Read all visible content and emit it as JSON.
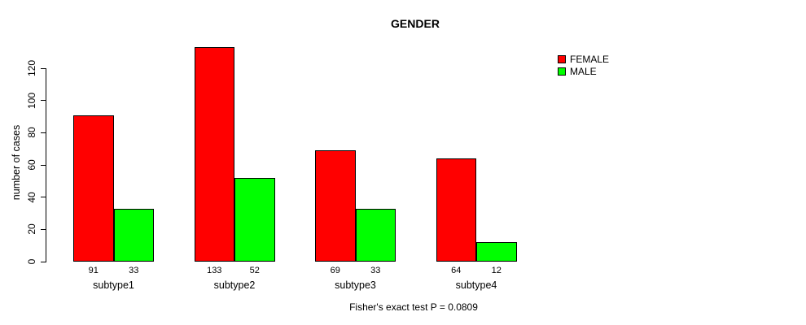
{
  "chart_data": {
    "type": "bar",
    "title": "GENDER",
    "ylabel": "number of cases",
    "xlabel": "",
    "categories": [
      "subtype1",
      "subtype2",
      "subtype3",
      "subtype4"
    ],
    "series": [
      {
        "name": "FEMALE",
        "color": "#FF0000",
        "values": [
          91,
          133,
          69,
          64
        ]
      },
      {
        "name": "MALE",
        "color": "#00FF00",
        "values": [
          33,
          52,
          33,
          12
        ]
      }
    ],
    "bar_value_labels": [
      [
        91,
        33
      ],
      [
        133,
        52
      ],
      [
        69,
        33
      ],
      [
        64,
        12
      ]
    ],
    "yticks": [
      0,
      20,
      40,
      60,
      80,
      100,
      120
    ],
    "ylim": [
      0,
      120
    ],
    "grid": false,
    "legend_position": "top-right",
    "caption": "Fisher's exact test P = 0.0809"
  }
}
